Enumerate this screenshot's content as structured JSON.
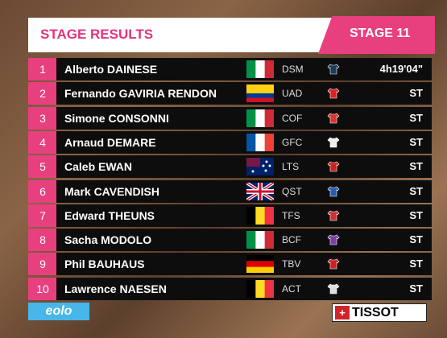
{
  "header": {
    "title": "STAGE RESULTS",
    "stage": "STAGE 11"
  },
  "rows": [
    {
      "rank": "1",
      "name": "Alberto DAINESE",
      "team": "DSM",
      "time": "4h19'04\""
    },
    {
      "rank": "2",
      "name": "Fernando GAVIRIA RENDON",
      "team": "UAD",
      "time": "ST"
    },
    {
      "rank": "3",
      "name": "Simone CONSONNI",
      "team": "COF",
      "time": "ST"
    },
    {
      "rank": "4",
      "name": "Arnaud DEMARE",
      "team": "GFC",
      "time": "ST"
    },
    {
      "rank": "5",
      "name": "Caleb EWAN",
      "team": "LTS",
      "time": "ST"
    },
    {
      "rank": "6",
      "name": "Mark CAVENDISH",
      "team": "QST",
      "time": "ST"
    },
    {
      "rank": "7",
      "name": "Edward THEUNS",
      "team": "TFS",
      "time": "ST"
    },
    {
      "rank": "8",
      "name": "Sacha MODOLO",
      "team": "BCF",
      "time": "ST"
    },
    {
      "rank": "9",
      "name": "Phil BAUHAUS",
      "team": "TBV",
      "time": "ST"
    },
    {
      "rank": "10",
      "name": "Lawrence NAESEN",
      "team": "ACT",
      "time": "ST"
    }
  ],
  "logos": {
    "sponsor_left": "eolo",
    "sponsor_right": "TISSOT"
  }
}
